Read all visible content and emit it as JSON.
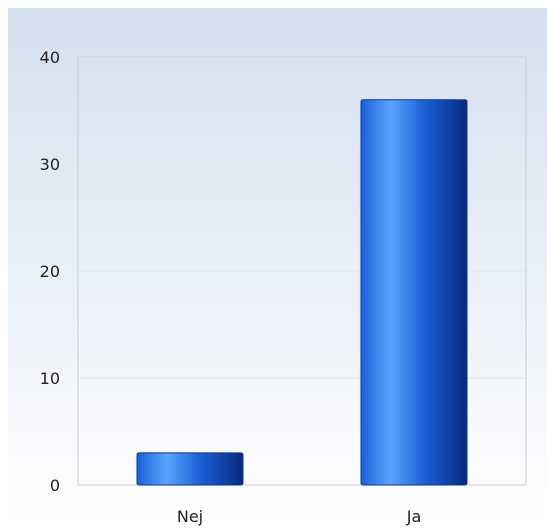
{
  "chart_data": {
    "type": "bar",
    "categories": [
      "Nej",
      "Ja"
    ],
    "values": [
      3,
      36
    ],
    "ylim": [
      0,
      40
    ],
    "yticks": [
      0,
      10,
      20,
      30,
      40
    ],
    "grid": true,
    "title": "",
    "xlabel": "",
    "ylabel": ""
  },
  "colors": {
    "background_top": "#d4e0f0",
    "background_bottom": "#ffffff",
    "bar_edge": "#0a3690",
    "bar_light": "#5aa4ff",
    "bar_mid": "#1a5fd6",
    "bar_dark": "#082a80",
    "gridline": "#e2e7ee",
    "axis_border": "#cccccc"
  }
}
